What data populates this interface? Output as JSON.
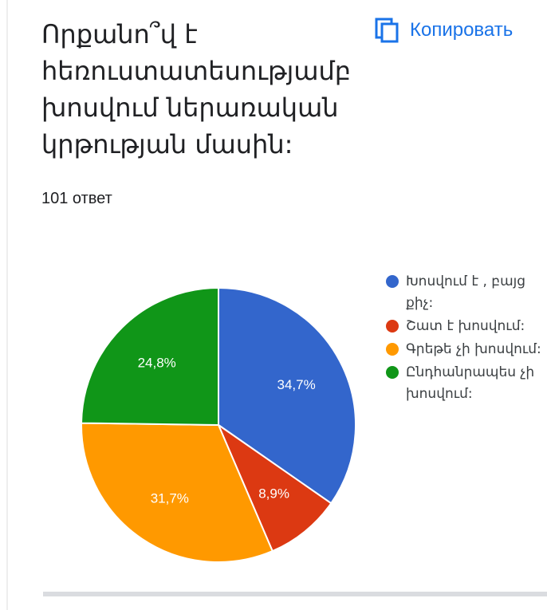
{
  "header": {
    "title": "Որքանո՞վ է հեռուստատեսությամբ խոսվում ներառական կրթության մասին:",
    "copy_label": "Копировать"
  },
  "summary": {
    "response_count": "101 ответ"
  },
  "colors": {
    "accent": "#1a73e8",
    "slice_border": "#ffffff"
  },
  "chart_data": {
    "type": "pie",
    "title": "",
    "start_angle_deg": 0,
    "direction": "clockwise",
    "legend_position": "right",
    "slices": [
      {
        "label": "Խոսվում է , բայց քիչ:",
        "value": 34.7,
        "display": "34,7%",
        "color": "#3366cc"
      },
      {
        "label": "Շատ է խոսվում:",
        "value": 8.9,
        "display": "8,9%",
        "color": "#dc3912"
      },
      {
        "label": "Գրեթե չի խոսվում:",
        "value": 31.7,
        "display": "31,7%",
        "color": "#ff9900"
      },
      {
        "label": "Ընդհանրապես չի խոսվում:",
        "value": 24.8,
        "display": "24,8%",
        "color": "#109618"
      }
    ]
  }
}
